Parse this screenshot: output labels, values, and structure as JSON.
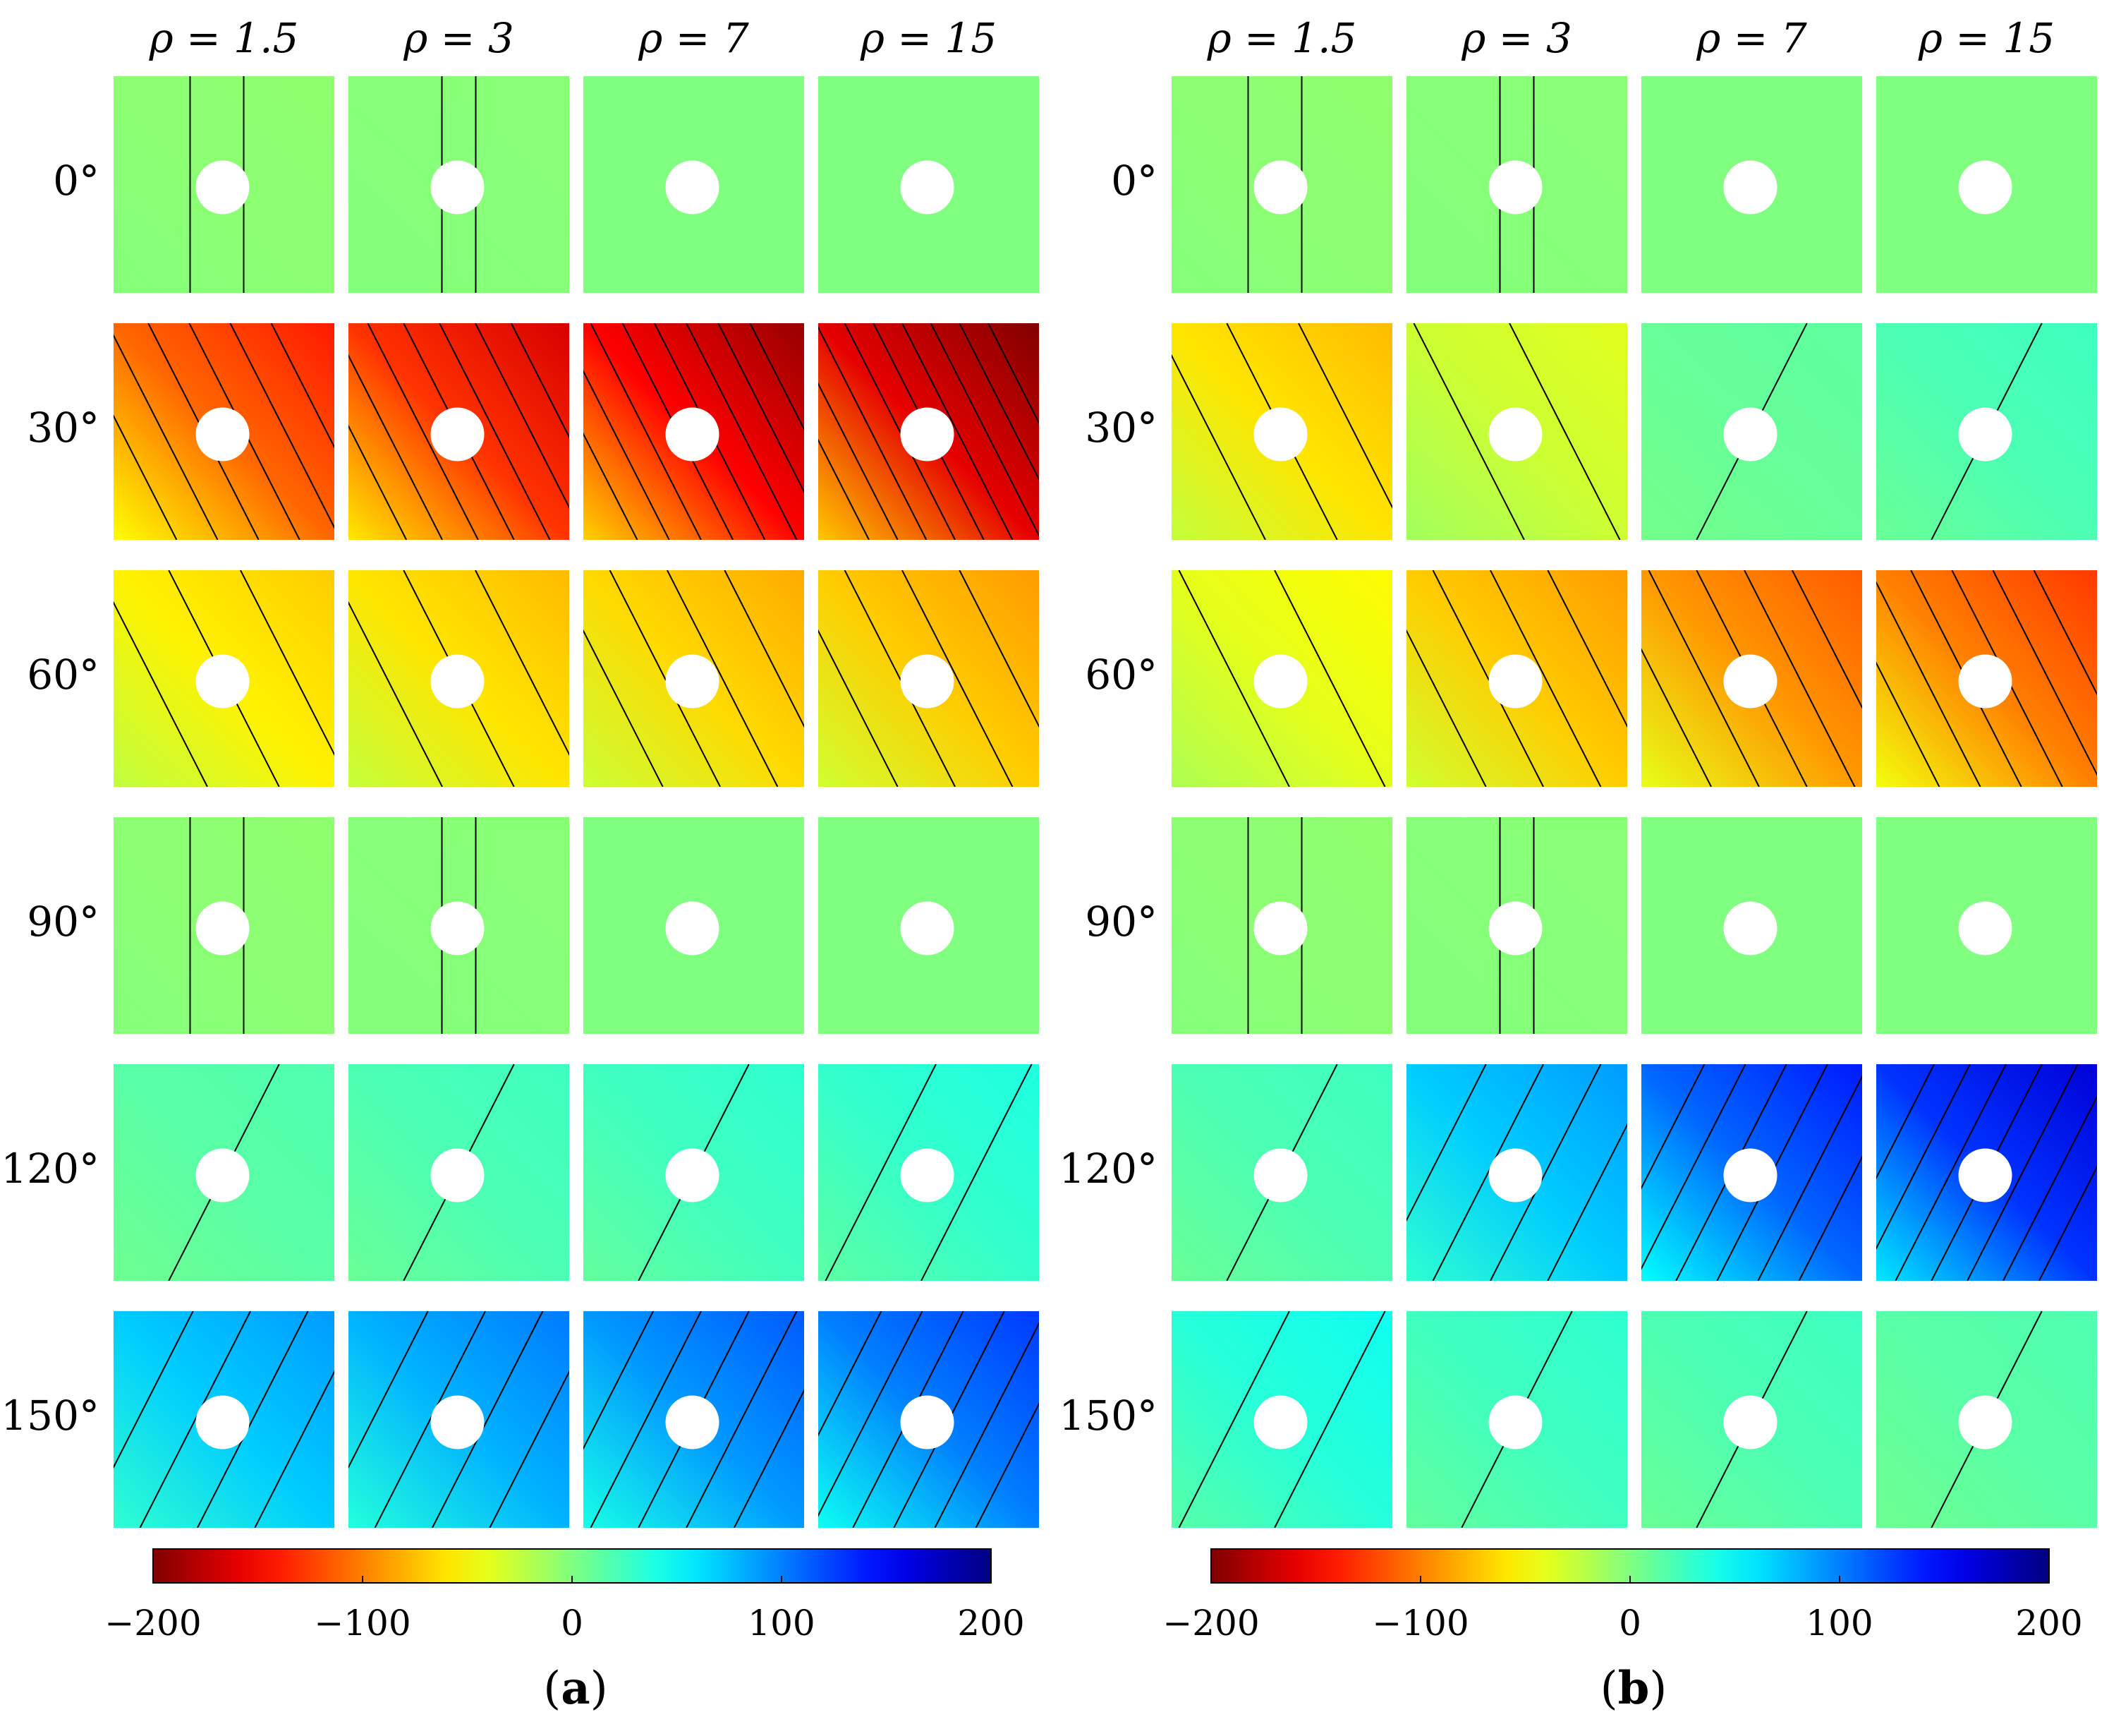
{
  "chart_data": {
    "type": "heatmap",
    "description_of_layout": "two panels of 6x4 small contour maps",
    "columns": [
      "ρ = 1.5",
      "ρ = 3",
      "ρ = 7",
      "ρ = 15"
    ],
    "rows": [
      "0°",
      "30°",
      "60°",
      "90°",
      "120°",
      "150°"
    ],
    "colorbar": {
      "ticks": [
        "−200",
        "−100",
        "0",
        "100",
        "200"
      ],
      "range": [
        -200,
        200
      ],
      "colormap": "jet_reversed"
    },
    "panels": [
      {
        "label_open": "(",
        "label_letter": "a",
        "label_close": ")",
        "values": [
          [
            -5,
            -3,
            0,
            0
          ],
          [
            -110,
            -130,
            -150,
            -160
          ],
          [
            -55,
            -60,
            -65,
            -70
          ],
          [
            -5,
            -3,
            0,
            0
          ],
          [
            15,
            20,
            25,
            30
          ],
          [
            70,
            80,
            90,
            100
          ]
        ]
      },
      {
        "label_open": "(",
        "label_letter": "b",
        "label_close": ")",
        "values": [
          [
            -5,
            -3,
            0,
            0
          ],
          [
            -60,
            -30,
            10,
            20
          ],
          [
            -40,
            -70,
            -90,
            -100
          ],
          [
            -5,
            -3,
            0,
            0
          ],
          [
            20,
            70,
            110,
            130
          ],
          [
            35,
            25,
            20,
            15
          ]
        ]
      }
    ]
  }
}
